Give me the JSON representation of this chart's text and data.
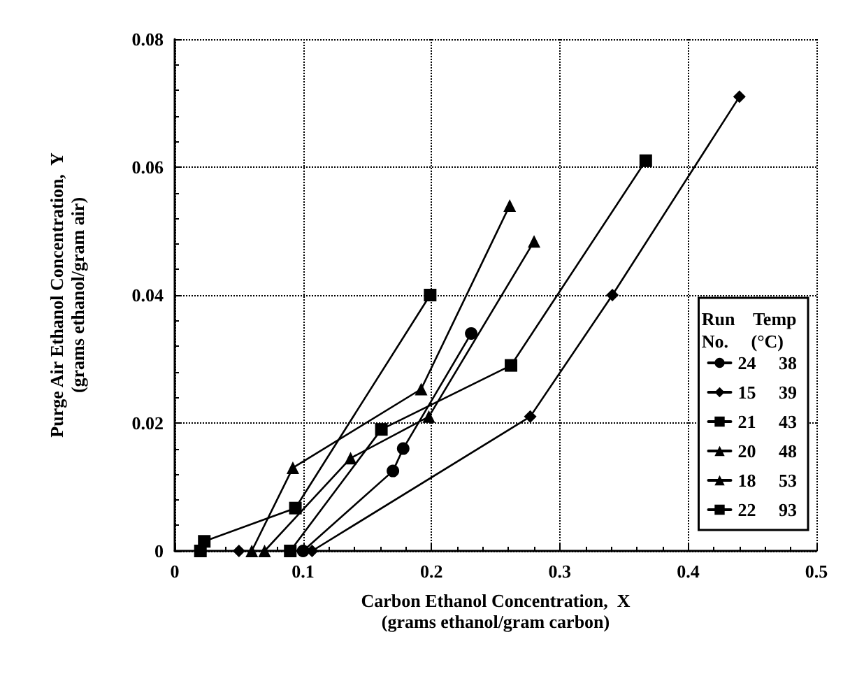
{
  "chart_data": {
    "type": "line",
    "xlabel": "Carbon Ethanol Concentration,  X\n(grams ethanol/gram carbon)",
    "ylabel": "Purge Air Ethanol Concentration,  Y\n(grams ethanol/gram air)",
    "legend_title": "Run    Temp\nNo.     (°C)",
    "xlim": [
      0,
      0.5
    ],
    "xticks": [
      0,
      0.1,
      0.2,
      0.3,
      0.4,
      0.5
    ],
    "ylim": [
      0,
      0.08
    ],
    "yticks": [
      0,
      0.02,
      0.04,
      0.06,
      0.08
    ],
    "grid": true,
    "legend": "right",
    "line_style": "solid",
    "series": [
      {
        "name": "24     38",
        "color": "#000000",
        "marker": "circle",
        "x": [
          0.1,
          0.17,
          0.178,
          0.231
        ],
        "values": [
          0,
          0.0125,
          0.016,
          0.034
        ]
      },
      {
        "name": "15     39",
        "color": "#000000",
        "marker": "diamond",
        "x": [
          0.05,
          0.107,
          0.277,
          0.341,
          0.44
        ],
        "values": [
          0,
          0,
          0.021,
          0.04,
          0.071
        ]
      },
      {
        "name": "21     43",
        "color": "#000000",
        "marker": "square",
        "x": [
          0.09,
          0.161,
          0.262,
          0.367
        ],
        "values": [
          0,
          0.019,
          0.029,
          0.061
        ]
      },
      {
        "name": "20     48",
        "color": "#000000",
        "marker": "triangle",
        "x": [
          0.07,
          0.137,
          0.198,
          0.28
        ],
        "values": [
          0,
          0.0145,
          0.021,
          0.0484
        ]
      },
      {
        "name": "18     53",
        "color": "#000000",
        "marker": "triangle",
        "x": [
          0.06,
          0.092,
          0.192,
          0.261
        ],
        "values": [
          0,
          0.013,
          0.0253,
          0.054
        ]
      },
      {
        "name": "22     93",
        "color": "#000000",
        "marker": "square",
        "x": [
          0.02,
          0.023,
          0.094,
          0.199
        ],
        "values": [
          0,
          0.0015,
          0.0067,
          0.04
        ]
      }
    ]
  }
}
